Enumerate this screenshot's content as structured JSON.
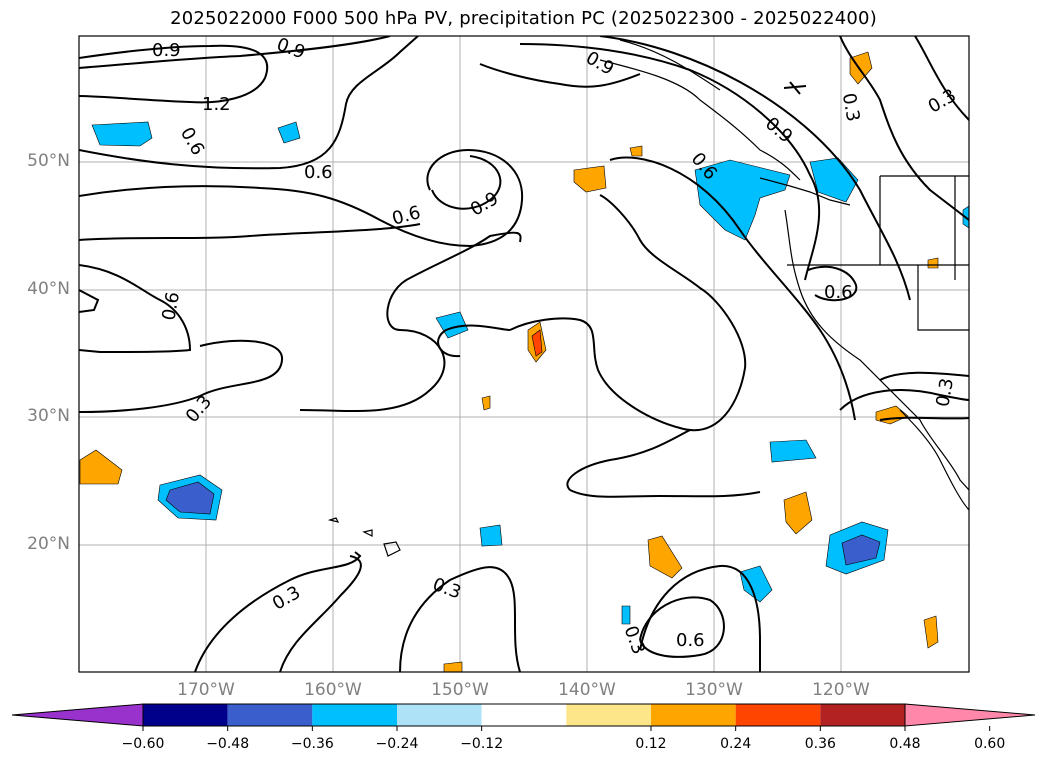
{
  "title": "2025022000 F000 500 hPa PV, precipitation PC (2025022300 - 2025022400)",
  "lat_labels": [
    "50°N",
    "40°N",
    "30°N",
    "20°N"
  ],
  "lon_labels": [
    "170°W",
    "160°W",
    "150°W",
    "140°W",
    "130°W",
    "120°W"
  ],
  "contour_labels": [
    "0.9",
    "0.9",
    "1.2",
    "0.6",
    "0.6",
    "0.6",
    "0.9",
    "0.6",
    "0.9",
    "0.6",
    "0.9",
    "0.6",
    "0.3",
    "0.3",
    "0.3",
    "0.3",
    "0.3",
    "0.3",
    "0.6",
    "0.3"
  ],
  "colorbar": {
    "ticks": [
      "−0.60",
      "−0.48",
      "−0.36",
      "−0.24",
      "−0.12",
      "0.12",
      "0.24",
      "0.36",
      "0.48",
      "0.60"
    ],
    "colors": [
      "#9932cc",
      "#00008b",
      "#3a5fcd",
      "#00bfff",
      "#ade2f7",
      "#ffffff",
      "#fde68a",
      "#ffa500",
      "#ff4500",
      "#b22222",
      "#ff88aa"
    ]
  }
}
